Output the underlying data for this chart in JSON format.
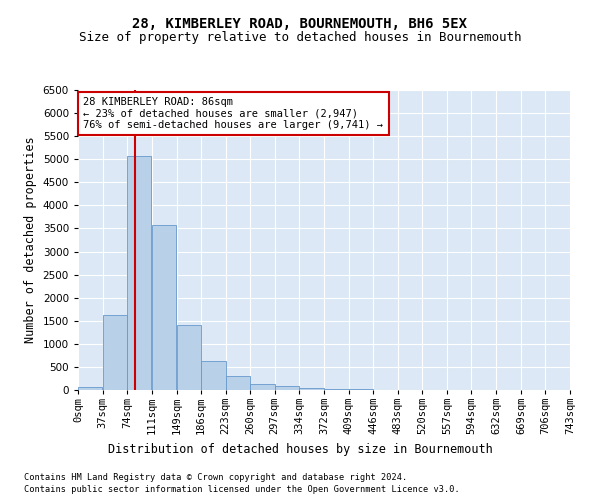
{
  "title": "28, KIMBERLEY ROAD, BOURNEMOUTH, BH6 5EX",
  "subtitle": "Size of property relative to detached houses in Bournemouth",
  "xlabel": "Distribution of detached houses by size in Bournemouth",
  "ylabel": "Number of detached properties",
  "footnote1": "Contains HM Land Registry data © Crown copyright and database right 2024.",
  "footnote2": "Contains public sector information licensed under the Open Government Licence v3.0.",
  "property_size": 86,
  "annotation_title": "28 KIMBERLEY ROAD: 86sqm",
  "annotation_line1": "← 23% of detached houses are smaller (2,947)",
  "annotation_line2": "76% of semi-detached houses are larger (9,741) →",
  "bin_edges": [
    0,
    37,
    74,
    111,
    149,
    186,
    223,
    260,
    297,
    334,
    372,
    409,
    446,
    483,
    520,
    557,
    594,
    632,
    669,
    706,
    743
  ],
  "bin_labels": [
    "0sqm",
    "37sqm",
    "74sqm",
    "111sqm",
    "149sqm",
    "186sqm",
    "223sqm",
    "260sqm",
    "297sqm",
    "334sqm",
    "372sqm",
    "409sqm",
    "446sqm",
    "483sqm",
    "520sqm",
    "557sqm",
    "594sqm",
    "632sqm",
    "669sqm",
    "706sqm",
    "743sqm"
  ],
  "bar_heights": [
    75,
    1620,
    5080,
    3580,
    1410,
    620,
    300,
    130,
    80,
    40,
    30,
    20,
    10,
    0,
    0,
    0,
    0,
    0,
    0,
    0
  ],
  "bar_color": "#b8d0e8",
  "bar_edge_color": "#6699cc",
  "vline_x": 86,
  "vline_color": "#cc0000",
  "ylim": [
    0,
    6500
  ],
  "yticks": [
    0,
    500,
    1000,
    1500,
    2000,
    2500,
    3000,
    3500,
    4000,
    4500,
    5000,
    5500,
    6000,
    6500
  ],
  "plot_bg_color": "#dce8f5",
  "fig_bg_color": "#ffffff",
  "grid_color": "#ffffff",
  "title_fontsize": 10,
  "subtitle_fontsize": 9,
  "axis_label_fontsize": 8.5,
  "tick_fontsize": 7.5,
  "annot_fontsize": 7.5
}
